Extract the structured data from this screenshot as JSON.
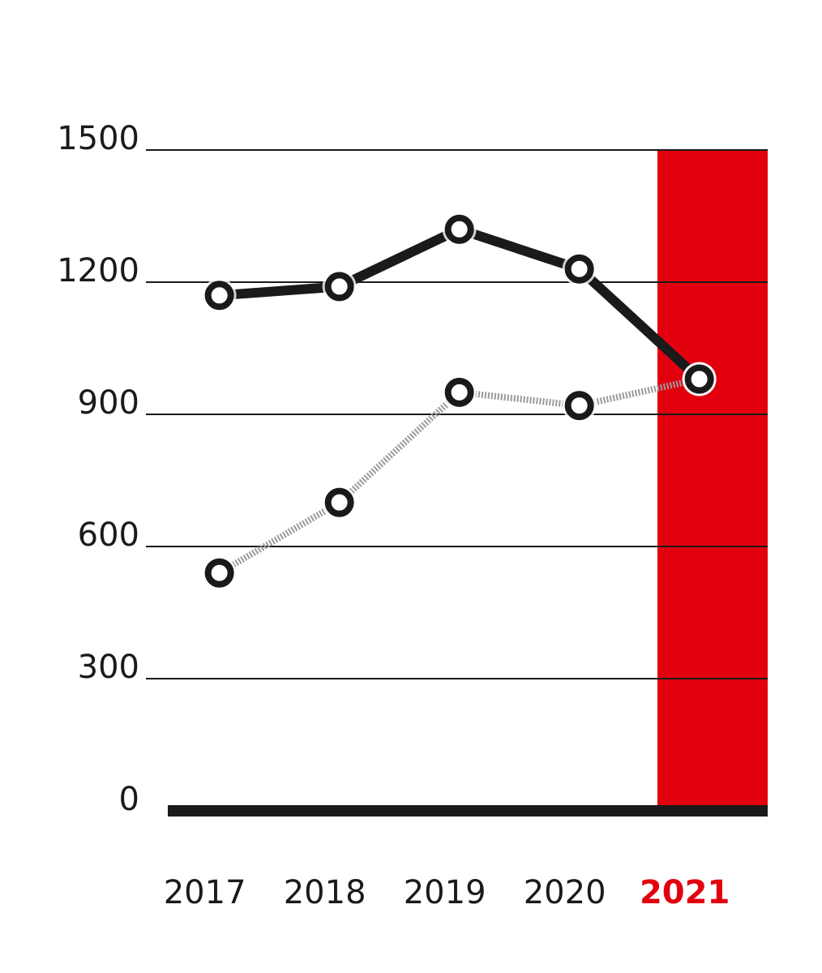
{
  "chart_data": {
    "type": "line",
    "categories": [
      "2017",
      "2018",
      "2019",
      "2020",
      "2021"
    ],
    "series": [
      {
        "color": "#1a1a1a",
        "style": "solid",
        "values": [
          1170,
          1190,
          1320,
          1230,
          980
        ]
      },
      {
        "color": "#9a9a9a",
        "style": "dotted",
        "values": [
          540,
          700,
          950,
          920,
          980
        ]
      }
    ],
    "ylim": [
      0,
      1500
    ],
    "yticks": [
      0,
      300,
      600,
      900,
      1200,
      1500
    ],
    "grid": true,
    "highlight": {
      "category": "2021",
      "color": "#e2000f"
    }
  }
}
